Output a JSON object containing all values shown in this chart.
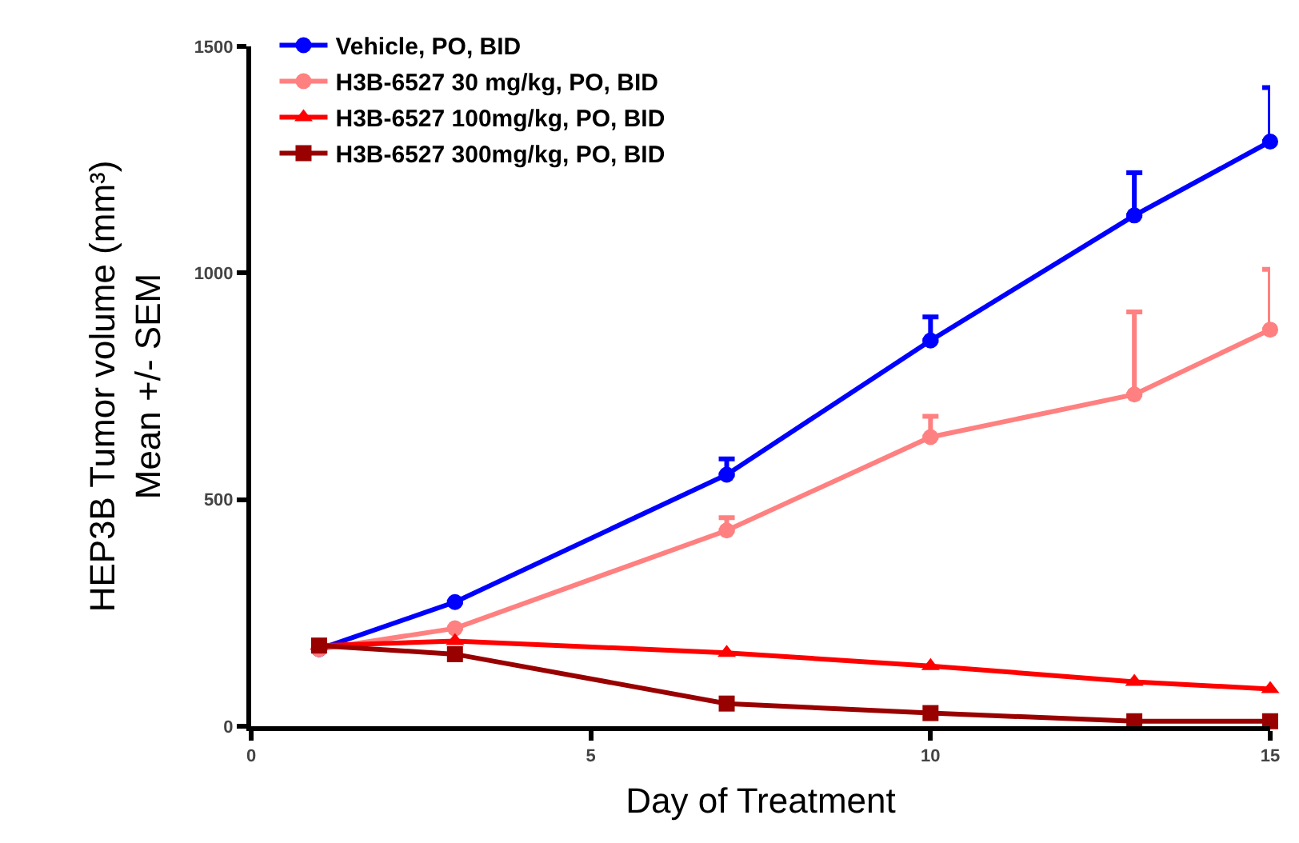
{
  "chart_data": {
    "type": "line",
    "xlabel": "Day of Treatment",
    "ylabel": "HEP3B Tumor volume (mm³)\nMean +/- SEM",
    "x": [
      1,
      3,
      7,
      10,
      13,
      15
    ],
    "xlim": [
      0,
      15
    ],
    "xticks": [
      0,
      5,
      10,
      15
    ],
    "ylim": [
      0,
      1500
    ],
    "yticks": [
      0,
      500,
      1000,
      1500
    ],
    "legend": "top left",
    "line_style": "solid",
    "series": [
      {
        "name": "Vehicle, PO, BID",
        "color": "#0000ff",
        "marker": "circle",
        "values": [
          170,
          274,
          555,
          851,
          1127,
          1290
        ],
        "errors": [
          null,
          null,
          [
            555,
            590
          ],
          [
            851,
            903
          ],
          [
            1127,
            1221
          ],
          [
            1290,
            1409
          ]
        ]
      },
      {
        "name": "H3B-6527 30 mg/kg, PO, BID",
        "color": "#ff8080",
        "marker": "circle",
        "values": [
          170,
          216,
          432,
          638,
          732,
          875
        ],
        "errors": [
          null,
          null,
          [
            432,
            460
          ],
          [
            638,
            684
          ],
          [
            732,
            914
          ],
          [
            875,
            1008
          ]
        ]
      },
      {
        "name": "H3B-6527 100mg/kg, PO, BID",
        "color": "#ff0000",
        "marker": "triangle",
        "values": [
          178,
          188,
          162,
          133,
          98,
          82
        ]
      },
      {
        "name": "H3B-6527 300mg/kg, PO, BID",
        "color": "#990000",
        "marker": "square",
        "values": [
          178,
          159,
          50,
          29,
          11,
          11
        ]
      }
    ]
  }
}
